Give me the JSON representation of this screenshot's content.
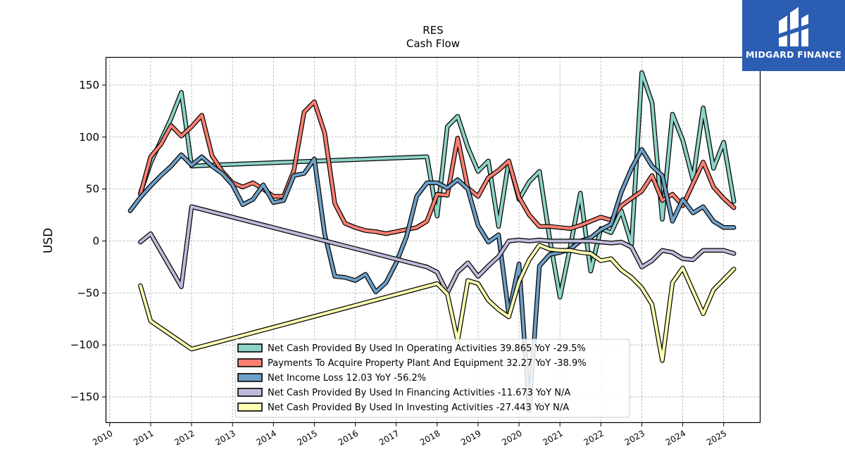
{
  "brand": {
    "name": "MIDGARD FINANCE",
    "color": "#2b5db3"
  },
  "chart_data": {
    "type": "line",
    "title": "RES",
    "subtitle": "Cash Flow",
    "xlabel": "",
    "ylabel": "USD",
    "xlim": [
      2009.9,
      2025.9
    ],
    "ylim": [
      -175,
      177
    ],
    "xticks": [
      "2010",
      "2011",
      "2012",
      "2013",
      "2014",
      "2015",
      "2016",
      "2017",
      "2018",
      "2019",
      "2020",
      "2021",
      "2022",
      "2023",
      "2024",
      "2025"
    ],
    "yticks": [
      -150,
      -100,
      -50,
      0,
      50,
      100,
      150
    ],
    "grid": true,
    "legend_position": "lower-center",
    "series": [
      {
        "name": "Net Cash Provided By Used In Operating Activities",
        "legend_label": "Net Cash Provided By Used In Operating Activities  39.865 YoY -29.5%",
        "color": "#8dd3c7",
        "points": [
          [
            2010.75,
            46
          ],
          [
            2011.0,
            75
          ],
          [
            2011.5,
            118
          ],
          [
            2011.75,
            143
          ],
          [
            2012.0,
            72
          ],
          [
            2012.5,
            73
          ],
          [
            2017.75,
            81
          ],
          [
            2018.0,
            24
          ],
          [
            2018.25,
            110
          ],
          [
            2018.5,
            120
          ],
          [
            2018.75,
            90
          ],
          [
            2019.0,
            67
          ],
          [
            2019.25,
            77
          ],
          [
            2019.5,
            14
          ],
          [
            2019.75,
            77
          ],
          [
            2020.0,
            40
          ],
          [
            2020.25,
            57
          ],
          [
            2020.5,
            67
          ],
          [
            2020.75,
            2
          ],
          [
            2021.0,
            -54
          ],
          [
            2021.25,
            -6
          ],
          [
            2021.5,
            46
          ],
          [
            2021.75,
            -29
          ],
          [
            2022.0,
            12
          ],
          [
            2022.25,
            8
          ],
          [
            2022.5,
            29
          ],
          [
            2022.75,
            -3
          ],
          [
            2023.0,
            162
          ],
          [
            2023.25,
            133
          ],
          [
            2023.5,
            21
          ],
          [
            2023.75,
            122
          ],
          [
            2024.0,
            97
          ],
          [
            2024.25,
            59
          ],
          [
            2024.5,
            128
          ],
          [
            2024.75,
            70
          ],
          [
            2025.0,
            95
          ],
          [
            2025.25,
            38
          ]
        ]
      },
      {
        "name": "Payments To Acquire Property Plant And Equipment",
        "legend_label": "Payments To Acquire Property Plant And Equipment  32.27 YoY -38.9%",
        "color": "#fb8072",
        "points": [
          [
            2010.75,
            45
          ],
          [
            2011.0,
            81
          ],
          [
            2011.25,
            93
          ],
          [
            2011.5,
            111
          ],
          [
            2011.75,
            101
          ],
          [
            2012.0,
            110
          ],
          [
            2012.25,
            121
          ],
          [
            2012.5,
            82
          ],
          [
            2012.75,
            67
          ],
          [
            2013.0,
            56
          ],
          [
            2013.25,
            52
          ],
          [
            2013.5,
            56
          ],
          [
            2013.75,
            50
          ],
          [
            2014.0,
            43
          ],
          [
            2014.25,
            43
          ],
          [
            2014.5,
            68
          ],
          [
            2014.75,
            124
          ],
          [
            2015.0,
            134
          ],
          [
            2015.25,
            104
          ],
          [
            2015.5,
            36
          ],
          [
            2015.75,
            17
          ],
          [
            2016.0,
            13
          ],
          [
            2016.25,
            10
          ],
          [
            2016.5,
            9
          ],
          [
            2016.75,
            7
          ],
          [
            2017.0,
            9
          ],
          [
            2017.25,
            11
          ],
          [
            2017.5,
            13
          ],
          [
            2017.75,
            19
          ],
          [
            2018.0,
            45
          ],
          [
            2018.25,
            44
          ],
          [
            2018.5,
            99
          ],
          [
            2018.75,
            51
          ],
          [
            2019.0,
            43
          ],
          [
            2019.25,
            61
          ],
          [
            2019.5,
            68
          ],
          [
            2019.75,
            77
          ],
          [
            2020.0,
            42
          ],
          [
            2020.25,
            25
          ],
          [
            2020.5,
            14
          ],
          [
            2020.75,
            14
          ],
          [
            2021.0,
            13
          ],
          [
            2021.25,
            12
          ],
          [
            2021.5,
            15
          ],
          [
            2021.75,
            19
          ],
          [
            2022.0,
            23
          ],
          [
            2022.25,
            20
          ],
          [
            2022.5,
            34
          ],
          [
            2022.75,
            41
          ],
          [
            2023.0,
            48
          ],
          [
            2023.25,
            63
          ],
          [
            2023.5,
            39
          ],
          [
            2023.75,
            45
          ],
          [
            2024.0,
            34
          ],
          [
            2024.25,
            55
          ],
          [
            2024.5,
            76
          ],
          [
            2024.75,
            52
          ],
          [
            2025.0,
            41
          ],
          [
            2025.25,
            32
          ]
        ]
      },
      {
        "name": "Net Income Loss",
        "legend_label": "Net Income Loss  12.03 YoY -56.2%",
        "color": "#6ea0c8",
        "points": [
          [
            2010.5,
            29
          ],
          [
            2010.75,
            42
          ],
          [
            2011.0,
            53
          ],
          [
            2011.25,
            63
          ],
          [
            2011.5,
            72
          ],
          [
            2011.75,
            83
          ],
          [
            2012.0,
            73
          ],
          [
            2012.25,
            81
          ],
          [
            2012.5,
            72
          ],
          [
            2012.75,
            65
          ],
          [
            2013.0,
            54
          ],
          [
            2013.25,
            35
          ],
          [
            2013.5,
            40
          ],
          [
            2013.75,
            54
          ],
          [
            2014.0,
            37
          ],
          [
            2014.25,
            39
          ],
          [
            2014.5,
            63
          ],
          [
            2014.75,
            65
          ],
          [
            2015.0,
            79
          ],
          [
            2015.25,
            7
          ],
          [
            2015.5,
            -34
          ],
          [
            2015.75,
            -35
          ],
          [
            2016.0,
            -38
          ],
          [
            2016.25,
            -32
          ],
          [
            2016.5,
            -49
          ],
          [
            2016.75,
            -40
          ],
          [
            2017.0,
            -21
          ],
          [
            2017.25,
            4
          ],
          [
            2017.5,
            43
          ],
          [
            2017.75,
            56
          ],
          [
            2018.0,
            56
          ],
          [
            2018.25,
            51
          ],
          [
            2018.5,
            59
          ],
          [
            2018.75,
            50
          ],
          [
            2019.0,
            15
          ],
          [
            2019.25,
            -1
          ],
          [
            2019.5,
            6
          ],
          [
            2019.75,
            -70
          ],
          [
            2020.0,
            -22
          ],
          [
            2020.25,
            -163
          ],
          [
            2020.5,
            -24
          ],
          [
            2020.75,
            -13
          ],
          [
            2021.0,
            -11
          ],
          [
            2021.25,
            -8
          ],
          [
            2021.5,
            0
          ],
          [
            2021.75,
            3
          ],
          [
            2022.0,
            11
          ],
          [
            2022.25,
            16
          ],
          [
            2022.5,
            47
          ],
          [
            2022.75,
            70
          ],
          [
            2023.0,
            88
          ],
          [
            2023.25,
            72
          ],
          [
            2023.5,
            63
          ],
          [
            2023.75,
            19
          ],
          [
            2024.0,
            40
          ],
          [
            2024.25,
            27
          ],
          [
            2024.5,
            33
          ],
          [
            2024.75,
            19
          ],
          [
            2025.0,
            13
          ],
          [
            2025.25,
            13
          ]
        ]
      },
      {
        "name": "Net Cash Provided By Used In Financing Activities",
        "legend_label": "Net Cash Provided By Used In Financing Activities  -11.673 YoY N/A",
        "color": "#bebada",
        "points": [
          [
            2010.75,
            -1
          ],
          [
            2011.0,
            7
          ],
          [
            2011.75,
            -44
          ],
          [
            2012.0,
            33
          ],
          [
            2017.75,
            -25
          ],
          [
            2018.0,
            -30
          ],
          [
            2018.25,
            -50
          ],
          [
            2018.5,
            -30
          ],
          [
            2018.75,
            -21
          ],
          [
            2019.0,
            -34
          ],
          [
            2019.25,
            -24
          ],
          [
            2019.5,
            -15
          ],
          [
            2019.75,
            0
          ],
          [
            2020.0,
            1
          ],
          [
            2020.25,
            0
          ],
          [
            2020.5,
            1
          ],
          [
            2020.75,
            0
          ],
          [
            2021.0,
            0
          ],
          [
            2021.25,
            0
          ],
          [
            2021.5,
            0
          ],
          [
            2021.75,
            0
          ],
          [
            2022.0,
            -1
          ],
          [
            2022.25,
            -2
          ],
          [
            2022.5,
            -1
          ],
          [
            2022.75,
            -6
          ],
          [
            2023.0,
            -25
          ],
          [
            2023.25,
            -19
          ],
          [
            2023.5,
            -9
          ],
          [
            2023.75,
            -11
          ],
          [
            2024.0,
            -17
          ],
          [
            2024.25,
            -18
          ],
          [
            2024.5,
            -9
          ],
          [
            2024.75,
            -9
          ],
          [
            2025.0,
            -9
          ],
          [
            2025.25,
            -12
          ]
        ]
      },
      {
        "name": "Net Cash Provided By Used In Investing Activities",
        "legend_label": "Net Cash Provided By Used In Investing Activities  -27.443 YoY N/A",
        "color": "#ffffb3",
        "points": [
          [
            2010.75,
            -43
          ],
          [
            2011.0,
            -77
          ],
          [
            2012.0,
            -104
          ],
          [
            2018.0,
            -41
          ],
          [
            2018.25,
            -51
          ],
          [
            2018.5,
            -96
          ],
          [
            2018.75,
            -38
          ],
          [
            2019.0,
            -41
          ],
          [
            2019.25,
            -57
          ],
          [
            2019.5,
            -66
          ],
          [
            2019.75,
            -73
          ],
          [
            2020.0,
            -39
          ],
          [
            2020.25,
            -18
          ],
          [
            2020.5,
            -4
          ],
          [
            2020.75,
            -8
          ],
          [
            2021.0,
            -9
          ],
          [
            2021.25,
            -9
          ],
          [
            2021.5,
            -11
          ],
          [
            2021.75,
            -12
          ],
          [
            2022.0,
            -19
          ],
          [
            2022.25,
            -17
          ],
          [
            2022.5,
            -28
          ],
          [
            2022.75,
            -35
          ],
          [
            2023.0,
            -45
          ],
          [
            2023.25,
            -61
          ],
          [
            2023.5,
            -115
          ],
          [
            2023.75,
            -40
          ],
          [
            2024.0,
            -26
          ],
          [
            2024.25,
            -48
          ],
          [
            2024.5,
            -70
          ],
          [
            2024.75,
            -47
          ],
          [
            2025.0,
            -37
          ],
          [
            2025.25,
            -27
          ]
        ]
      }
    ]
  }
}
